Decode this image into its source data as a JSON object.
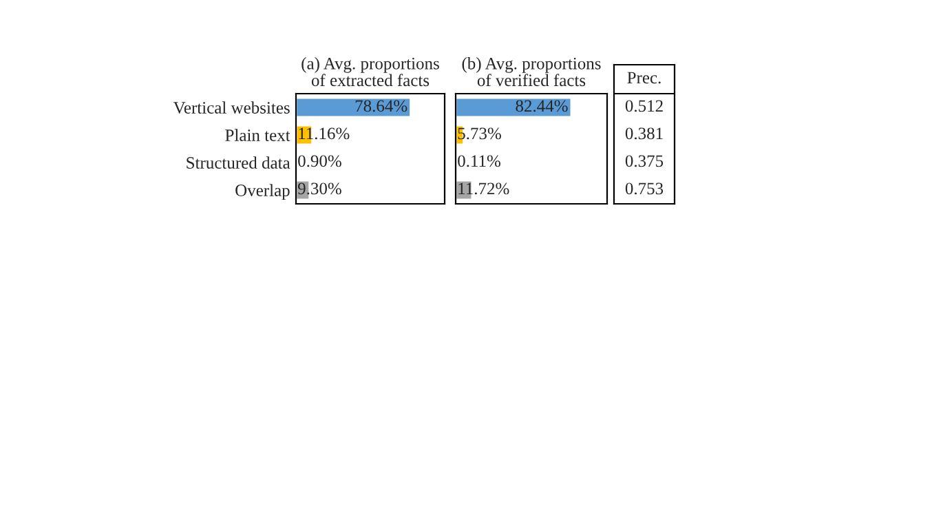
{
  "chart_data": [
    {
      "type": "bar",
      "orientation": "horizontal",
      "title": "(a) Avg. proportions\nof extracted facts",
      "categories": [
        "Vertical websites",
        "Plain text",
        "Structured data",
        "Overlap"
      ],
      "values": [
        78.64,
        11.16,
        0.9,
        9.3
      ],
      "value_labels": [
        "78.64%",
        "11.16%",
        "0.90%",
        "9.30%"
      ],
      "colors": [
        "#5b9bd5",
        "#ffc000",
        "#70ad47",
        "#a5a5a5"
      ],
      "xlim": [
        0,
        102
      ],
      "tick_labels": "y",
      "grid": false,
      "legend": false
    },
    {
      "type": "bar",
      "orientation": "horizontal",
      "title": "(b) Avg. proportions\nof verified facts",
      "categories": [
        null,
        null,
        null,
        null
      ],
      "values": [
        82.44,
        5.73,
        0.11,
        11.72
      ],
      "value_labels": [
        "82.44%",
        "5.73%",
        "0.11%",
        "11.72%"
      ],
      "colors": [
        "#5b9bd5",
        "#ffc000",
        "#70ad47",
        "#a5a5a5"
      ],
      "xlim": [
        0,
        108
      ],
      "tick_labels": false,
      "grid": false,
      "legend": false
    },
    {
      "type": "other",
      "title": "Prec.",
      "annotations": [
        "0.512",
        "0.381",
        "0.375",
        "0.753"
      ]
    }
  ]
}
